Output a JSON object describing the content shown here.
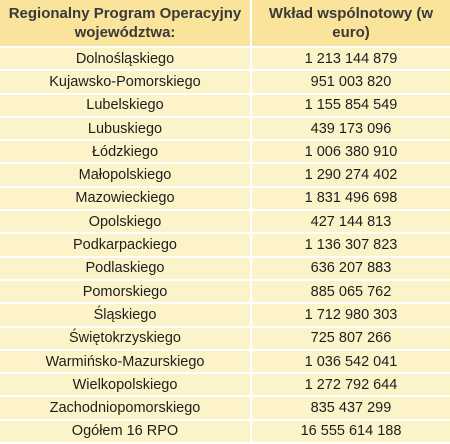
{
  "table": {
    "headers": [
      "Regionalny Program Operacyjny województwa:",
      "Wkład wspólnotowy (w euro)"
    ],
    "rows": [
      [
        "Dolnośląskiego",
        "1 213 144 879"
      ],
      [
        "Kujawsko-Pomorskiego",
        "951 003 820"
      ],
      [
        "Lubelskiego",
        "1 155 854 549"
      ],
      [
        "Lubuskiego",
        "439 173 096"
      ],
      [
        "Łódzkiego",
        "1 006 380 910"
      ],
      [
        "Małopolskiego",
        "1 290 274 402"
      ],
      [
        "Mazowieckiego",
        "1 831 496 698"
      ],
      [
        "Opolskiego",
        "427 144 813"
      ],
      [
        "Podkarpackiego",
        "1 136 307 823"
      ],
      [
        "Podlaskiego",
        "636 207 883"
      ],
      [
        "Pomorskiego",
        "885 065 762"
      ],
      [
        "Śląskiego",
        "1 712 980 303"
      ],
      [
        "Świętokrzyskiego",
        "725 807 266"
      ],
      [
        "Warmińsko-Mazurskiego",
        "1 036 542 041"
      ],
      [
        "Wielkopolskiego",
        "1 272 792 644"
      ],
      [
        "Zachodniopomorskiego",
        "835 437 299"
      ],
      [
        "Ogółem 16 RPO",
        "16 555 614 188"
      ]
    ]
  },
  "colors": {
    "header_bg": "#fae39a",
    "row_bg": "#fdf3c8",
    "divider": "#ffffff"
  }
}
